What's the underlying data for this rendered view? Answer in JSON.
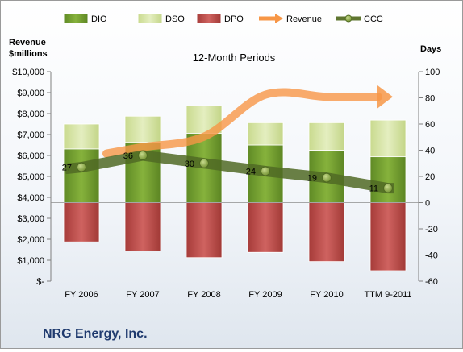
{
  "company": "NRG Energy, Inc.",
  "chart_data": {
    "type": "bar",
    "title": "12-Month Periods",
    "ylabel_left": "Revenue\n$millions",
    "ylabel_right": "Days",
    "categories": [
      "FY 2006",
      "FY 2007",
      "FY 2008",
      "FY 2009",
      "FY 2010",
      "TTM 9-2011"
    ],
    "left_axis": {
      "ylim": [
        0,
        10000
      ],
      "ticks": [
        0,
        1000,
        2000,
        3000,
        4000,
        5000,
        6000,
        7000,
        8000,
        9000,
        10000
      ],
      "tick_labels": [
        "$-",
        "$1,000",
        "$2,000",
        "$3,000",
        "$4,000",
        "$5,000",
        "$6,000",
        "$7,000",
        "$8,000",
        "$9,000",
        "$10,000"
      ]
    },
    "right_axis": {
      "ylim": [
        -60,
        100
      ],
      "ticks": [
        -60,
        -40,
        -20,
        0,
        20,
        40,
        60,
        80,
        100
      ],
      "tick_labels": [
        "-60",
        "-40",
        "-20",
        "0",
        "20",
        "40",
        "60",
        "80",
        "100"
      ]
    },
    "legend": {
      "position": "top",
      "entries": [
        {
          "name": "DIO",
          "color": "#77a033"
        },
        {
          "name": "DSO",
          "color": "#d7e4a8"
        },
        {
          "name": "DPO",
          "color": "#c0504d"
        },
        {
          "name": "Revenue",
          "color": "#f79646"
        },
        {
          "name": "CCC",
          "color": "#5f7530"
        }
      ]
    },
    "series": [
      {
        "name": "DIO",
        "axis": "right",
        "stack": "positive",
        "values": [
          41,
          46,
          53,
          44,
          40,
          35
        ],
        "color": "#77a033"
      },
      {
        "name": "DSO",
        "axis": "right",
        "stack": "positive",
        "values": [
          19,
          20,
          21,
          17,
          21,
          28
        ],
        "color": "#d7e4a8"
      },
      {
        "name": "DPO",
        "axis": "right",
        "stack": "negative",
        "values": [
          -30,
          -37,
          -42,
          -38,
          -45,
          -52
        ],
        "color": "#c0504d"
      },
      {
        "name": "Revenue",
        "axis": "left",
        "type": "line",
        "values": [
          null,
          6400,
          6900,
          8900,
          8800,
          8800
        ],
        "color": "#f79646"
      },
      {
        "name": "CCC",
        "axis": "right",
        "type": "line",
        "values": [
          27,
          36,
          30,
          24,
          19,
          11
        ],
        "labels": [
          "27",
          "36",
          "30",
          "24",
          "19",
          "11"
        ],
        "color": "#5f7530"
      }
    ]
  }
}
